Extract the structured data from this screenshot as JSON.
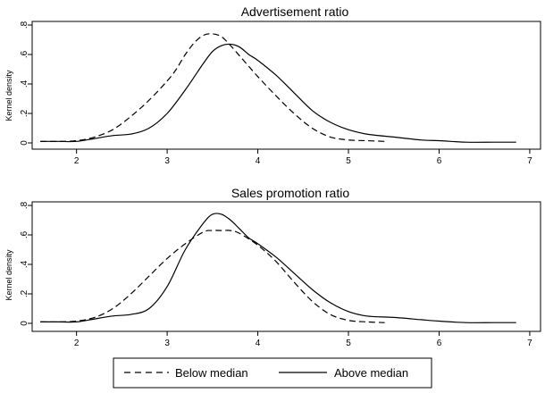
{
  "chart_data": [
    {
      "type": "line",
      "title": "Advertisement ratio",
      "xlabel": "",
      "ylabel": "Kernel density",
      "xlim": [
        1.55,
        7.05
      ],
      "ylim": [
        0,
        0.8
      ],
      "xticks": [
        2,
        3,
        4,
        5,
        6,
        7
      ],
      "yticks": [
        0,
        0.2,
        0.4,
        0.6,
        0.8
      ],
      "xtick_labels": [
        "2",
        "3",
        "4",
        "5",
        "6",
        "7"
      ],
      "ytick_labels": [
        "0",
        ".2",
        ".4",
        ".6",
        ".8"
      ],
      "grid": false,
      "series": [
        {
          "name": "Below median",
          "style": "dashed",
          "x": [
            1.6,
            1.8,
            2.0,
            2.2,
            2.4,
            2.6,
            2.8,
            3.0,
            3.1,
            3.2,
            3.3,
            3.4,
            3.5,
            3.6,
            3.7,
            3.8,
            3.9,
            4.0,
            4.2,
            4.4,
            4.6,
            4.8,
            5.0,
            5.2,
            5.4
          ],
          "y": [
            0.01,
            0.01,
            0.015,
            0.04,
            0.09,
            0.18,
            0.29,
            0.42,
            0.5,
            0.6,
            0.68,
            0.73,
            0.74,
            0.72,
            0.66,
            0.59,
            0.52,
            0.45,
            0.32,
            0.2,
            0.1,
            0.04,
            0.02,
            0.015,
            0.01
          ]
        },
        {
          "name": "Above median",
          "style": "solid",
          "x": [
            1.6,
            1.8,
            2.0,
            2.2,
            2.4,
            2.6,
            2.8,
            3.0,
            3.2,
            3.4,
            3.5,
            3.6,
            3.7,
            3.8,
            3.9,
            4.0,
            4.2,
            4.4,
            4.6,
            4.8,
            5.0,
            5.2,
            5.5,
            5.8,
            6.0,
            6.3,
            6.6,
            6.85
          ],
          "y": [
            0.01,
            0.01,
            0.01,
            0.03,
            0.05,
            0.06,
            0.1,
            0.2,
            0.36,
            0.54,
            0.62,
            0.66,
            0.67,
            0.65,
            0.6,
            0.56,
            0.46,
            0.34,
            0.22,
            0.14,
            0.09,
            0.06,
            0.04,
            0.02,
            0.015,
            0.005,
            0.005,
            0.005
          ]
        }
      ]
    },
    {
      "type": "line",
      "title": "Sales promotion ratio",
      "xlabel": "",
      "ylabel": "Kernel density",
      "xlim": [
        1.55,
        7.05
      ],
      "ylim": [
        0,
        0.8
      ],
      "xticks": [
        2,
        3,
        4,
        5,
        6,
        7
      ],
      "yticks": [
        0,
        0.2,
        0.4,
        0.6,
        0.8
      ],
      "xtick_labels": [
        "2",
        "3",
        "4",
        "5",
        "6",
        "7"
      ],
      "ytick_labels": [
        "0",
        ".2",
        ".4",
        ".6",
        ".8"
      ],
      "grid": false,
      "series": [
        {
          "name": "Below median",
          "style": "dashed",
          "x": [
            1.6,
            1.8,
            2.0,
            2.2,
            2.4,
            2.6,
            2.8,
            3.0,
            3.2,
            3.4,
            3.5,
            3.6,
            3.7,
            3.8,
            4.0,
            4.2,
            4.4,
            4.6,
            4.8,
            5.0,
            5.2,
            5.4
          ],
          "y": [
            0.01,
            0.01,
            0.015,
            0.04,
            0.1,
            0.2,
            0.32,
            0.44,
            0.54,
            0.62,
            0.63,
            0.63,
            0.63,
            0.61,
            0.53,
            0.42,
            0.28,
            0.15,
            0.06,
            0.02,
            0.01,
            0.005
          ]
        },
        {
          "name": "Above median",
          "style": "solid",
          "x": [
            1.6,
            1.8,
            2.0,
            2.2,
            2.4,
            2.6,
            2.8,
            3.0,
            3.2,
            3.4,
            3.5,
            3.6,
            3.7,
            3.8,
            3.9,
            4.0,
            4.2,
            4.4,
            4.6,
            4.8,
            5.0,
            5.2,
            5.5,
            5.8,
            6.0,
            6.3,
            6.6,
            6.85
          ],
          "y": [
            0.01,
            0.01,
            0.01,
            0.03,
            0.05,
            0.06,
            0.1,
            0.25,
            0.5,
            0.68,
            0.74,
            0.74,
            0.7,
            0.64,
            0.58,
            0.54,
            0.45,
            0.34,
            0.23,
            0.14,
            0.08,
            0.05,
            0.04,
            0.025,
            0.015,
            0.005,
            0.005,
            0.005
          ]
        }
      ]
    }
  ],
  "legend": {
    "placement": "bottom",
    "items": [
      {
        "label": "Below median",
        "style": "dashed"
      },
      {
        "label": "Above median",
        "style": "solid"
      }
    ]
  },
  "colors": {
    "line": "#000000",
    "background": "#ffffff"
  }
}
